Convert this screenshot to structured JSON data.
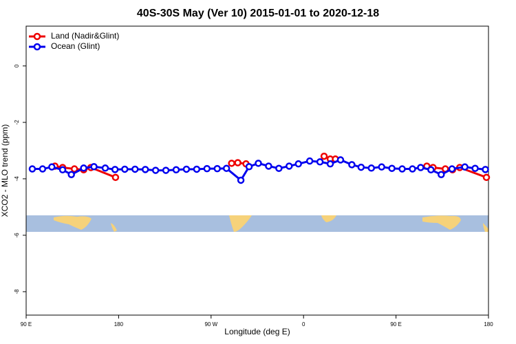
{
  "chart_data": {
    "type": "line",
    "title": "40S-30S May (Ver 10)   2015-01-01 to 2020-12-18",
    "xlabel": "Longitude (deg E)",
    "ylabel": "XCO2 - MLO trend (ppm)",
    "xlim": [
      90,
      540
    ],
    "xticks": [
      {
        "value": 90,
        "label": "90 E"
      },
      180,
      {
        "value": 270,
        "label": "90 W"
      },
      {
        "value": 360,
        "label": "0"
      },
      {
        "value": 450,
        "label": "90 E"
      },
      {
        "value": 540,
        "label": "180"
      }
    ],
    "ylim": [
      -8.83,
      1.41
    ],
    "yticks": [
      -8,
      -6,
      -4,
      -2,
      0
    ],
    "legend": "top-left",
    "series": [
      {
        "name": "Land (Nadir&Glint)",
        "color": "#ee0000",
        "x": [
          118,
          125.5,
          137,
          146,
          153,
          177,
          null,
          290,
          296,
          304,
          null,
          380,
          386,
          391,
          null,
          480,
          486,
          498,
          505,
          512,
          538
        ],
        "values": [
          -3.55,
          -3.6,
          -3.65,
          -3.68,
          -3.6,
          -3.95,
          null,
          -3.45,
          -3.43,
          -3.47,
          null,
          -3.2,
          -3.3,
          -3.3,
          null,
          -3.55,
          -3.6,
          -3.65,
          -3.68,
          -3.6,
          -3.95
        ]
      },
      {
        "name": "Ocean (Glint)",
        "color": "#0000ee",
        "x": [
          96,
          106,
          115,
          125.5,
          134,
          146,
          156,
          167,
          176.5,
          186,
          196,
          206,
          216,
          226,
          236,
          246,
          256,
          266,
          276,
          285,
          299,
          307,
          316,
          326,
          336,
          346,
          355,
          366,
          376,
          386,
          396,
          407,
          416,
          426,
          436,
          446,
          456,
          466,
          474,
          484,
          494,
          504.5,
          517,
          527,
          537
        ],
        "values": [
          -3.65,
          -3.65,
          -3.58,
          -3.68,
          -3.85,
          -3.62,
          -3.57,
          -3.62,
          -3.67,
          -3.66,
          -3.66,
          -3.67,
          -3.7,
          -3.7,
          -3.68,
          -3.66,
          -3.66,
          -3.64,
          -3.64,
          -3.63,
          -4.05,
          -3.57,
          -3.45,
          -3.55,
          -3.63,
          -3.55,
          -3.47,
          -3.37,
          -3.4,
          -3.47,
          -3.33,
          -3.5,
          -3.59,
          -3.62,
          -3.58,
          -3.63,
          -3.65,
          -3.65,
          -3.6,
          -3.68,
          -3.85,
          -3.65,
          -3.58,
          -3.63,
          -3.67
        ]
      }
    ]
  }
}
